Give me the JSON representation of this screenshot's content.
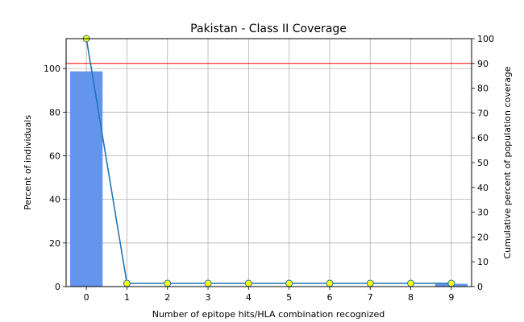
{
  "chart_data": {
    "type": "bar",
    "title": "Pakistan - Class II Coverage",
    "xlabel": "Number of epitope hits/HLA combination recognized",
    "ylabel": "Percent of individuals",
    "y2label": "Cumulative percent of population coverage",
    "categories": [
      "0",
      "1",
      "2",
      "3",
      "4",
      "5",
      "6",
      "7",
      "8",
      "9"
    ],
    "xlim": [
      -0.5,
      9.5
    ],
    "ylim": [
      0,
      113.7
    ],
    "y2lim": [
      0,
      100
    ],
    "yticks": [
      "0",
      "20",
      "40",
      "60",
      "80",
      "100"
    ],
    "y2ticks": [
      "0",
      "10",
      "20",
      "30",
      "40",
      "50",
      "60",
      "70",
      "80",
      "90",
      "100"
    ],
    "grid": true,
    "bar_color": "#6495ED",
    "bars": {
      "axis": "left",
      "values": [
        98.7,
        0,
        0,
        0,
        0,
        0,
        0,
        0,
        0,
        1.3
      ]
    },
    "cumulative_line": {
      "axis": "right",
      "color": "#1f77b4",
      "marker_face": "#ffff00",
      "values": [
        100,
        1.3,
        1.3,
        1.3,
        1.3,
        1.3,
        1.3,
        1.3,
        1.3,
        1.3
      ]
    },
    "threshold_line": {
      "axis": "right",
      "color": "#ff0000",
      "value": 90
    }
  }
}
